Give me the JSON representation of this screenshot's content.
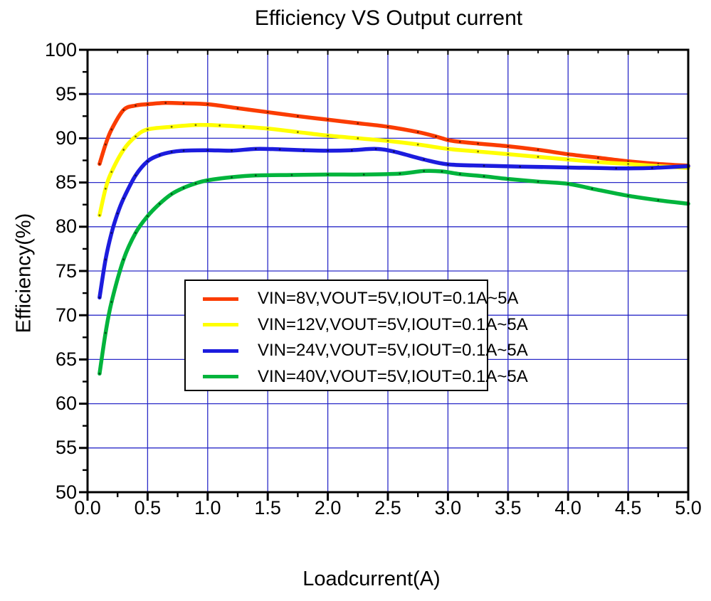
{
  "chart_data": {
    "type": "line",
    "title": "Efficiency VS Output current",
    "xlabel": "Loadcurrent(A)",
    "ylabel": "Efficiency(%)",
    "xlim": [
      0,
      5
    ],
    "ylim": [
      50,
      100
    ],
    "grid": "major",
    "grid_color": "#2B2BC8",
    "frame_color": "#000000",
    "x_ticks": {
      "values": [
        0,
        0.5,
        1,
        1.5,
        2,
        2.5,
        3,
        3.5,
        4,
        4.5,
        5
      ],
      "labels": [
        "0.0",
        "0.5",
        "1.0",
        "1.5",
        "2.0",
        "2.5",
        "3.0",
        "3.5",
        "4.0",
        "4.5",
        "5.0"
      ],
      "minor_step": 0.25
    },
    "y_ticks": {
      "values": [
        50,
        55,
        60,
        65,
        70,
        75,
        80,
        85,
        90,
        95,
        100
      ],
      "labels": [
        "50",
        "55",
        "60",
        "65",
        "70",
        "75",
        "80",
        "85",
        "90",
        "95",
        "100"
      ],
      "minor_step": 2.5
    },
    "legend": {
      "position": "inside-center-left",
      "border_color": "#000000",
      "background": "#FFFFFF"
    },
    "series": [
      {
        "name": "VIN=8V,VOUT=5V,IOUT=0.1A~5A",
        "color": "#FB3C00",
        "points": [
          [
            0.1,
            87.1
          ],
          [
            0.15,
            89.3
          ],
          [
            0.2,
            91.0
          ],
          [
            0.3,
            93.2
          ],
          [
            0.4,
            93.7
          ],
          [
            0.5,
            93.85
          ],
          [
            0.65,
            94.0
          ],
          [
            0.8,
            93.95
          ],
          [
            1.0,
            93.85
          ],
          [
            1.25,
            93.4
          ],
          [
            1.5,
            92.95
          ],
          [
            1.75,
            92.5
          ],
          [
            2.0,
            92.1
          ],
          [
            2.25,
            91.7
          ],
          [
            2.5,
            91.3
          ],
          [
            2.75,
            90.7
          ],
          [
            2.9,
            90.2
          ],
          [
            3.0,
            89.8
          ],
          [
            3.1,
            89.6
          ],
          [
            3.25,
            89.4
          ],
          [
            3.5,
            89.1
          ],
          [
            3.75,
            88.7
          ],
          [
            4.0,
            88.2
          ],
          [
            4.25,
            87.8
          ],
          [
            4.5,
            87.4
          ],
          [
            4.75,
            87.1
          ],
          [
            5.0,
            86.9
          ]
        ]
      },
      {
        "name": "VIN=12V,VOUT=5V,IOUT=0.1A~5A",
        "color": "#FFFF00",
        "points": [
          [
            0.1,
            81.3
          ],
          [
            0.15,
            84.3
          ],
          [
            0.2,
            86.2
          ],
          [
            0.3,
            88.7
          ],
          [
            0.4,
            90.2
          ],
          [
            0.5,
            91.0
          ],
          [
            0.7,
            91.3
          ],
          [
            0.9,
            91.5
          ],
          [
            1.1,
            91.45
          ],
          [
            1.3,
            91.3
          ],
          [
            1.5,
            91.1
          ],
          [
            1.75,
            90.7
          ],
          [
            2.0,
            90.3
          ],
          [
            2.25,
            90.0
          ],
          [
            2.5,
            89.7
          ],
          [
            2.75,
            89.3
          ],
          [
            3.0,
            88.8
          ],
          [
            3.25,
            88.5
          ],
          [
            3.5,
            88.2
          ],
          [
            3.75,
            87.9
          ],
          [
            4.0,
            87.6
          ],
          [
            4.25,
            87.3
          ],
          [
            4.5,
            87.1
          ],
          [
            4.75,
            86.85
          ],
          [
            5.0,
            86.65
          ]
        ]
      },
      {
        "name": "VIN=24V,VOUT=5V,IOUT=0.1A~5A",
        "color": "#1C1CDE",
        "points": [
          [
            0.1,
            72.0
          ],
          [
            0.15,
            76.3
          ],
          [
            0.2,
            79.3
          ],
          [
            0.25,
            81.5
          ],
          [
            0.3,
            83.2
          ],
          [
            0.4,
            85.8
          ],
          [
            0.5,
            87.4
          ],
          [
            0.6,
            88.1
          ],
          [
            0.7,
            88.45
          ],
          [
            0.8,
            88.6
          ],
          [
            1.0,
            88.65
          ],
          [
            1.2,
            88.6
          ],
          [
            1.4,
            88.8
          ],
          [
            1.6,
            88.75
          ],
          [
            1.8,
            88.65
          ],
          [
            2.0,
            88.6
          ],
          [
            2.2,
            88.65
          ],
          [
            2.4,
            88.8
          ],
          [
            2.55,
            88.5
          ],
          [
            2.8,
            87.6
          ],
          [
            3.0,
            87.05
          ],
          [
            3.3,
            86.9
          ],
          [
            3.6,
            86.8
          ],
          [
            4.0,
            86.7
          ],
          [
            4.4,
            86.6
          ],
          [
            4.7,
            86.65
          ],
          [
            5.0,
            86.85
          ]
        ]
      },
      {
        "name": "VIN=40V,VOUT=5V,IOUT=0.1A~5A",
        "color": "#00B43C",
        "points": [
          [
            0.1,
            63.4
          ],
          [
            0.15,
            68.0
          ],
          [
            0.2,
            71.5
          ],
          [
            0.3,
            76.3
          ],
          [
            0.4,
            79.3
          ],
          [
            0.5,
            81.2
          ],
          [
            0.6,
            82.6
          ],
          [
            0.7,
            83.7
          ],
          [
            0.8,
            84.4
          ],
          [
            0.9,
            84.9
          ],
          [
            1.0,
            85.25
          ],
          [
            1.2,
            85.6
          ],
          [
            1.4,
            85.8
          ],
          [
            1.7,
            85.85
          ],
          [
            2.0,
            85.9
          ],
          [
            2.3,
            85.9
          ],
          [
            2.6,
            86.0
          ],
          [
            2.8,
            86.3
          ],
          [
            2.95,
            86.25
          ],
          [
            3.1,
            85.95
          ],
          [
            3.3,
            85.7
          ],
          [
            3.5,
            85.4
          ],
          [
            3.75,
            85.1
          ],
          [
            4.0,
            84.85
          ],
          [
            4.2,
            84.3
          ],
          [
            4.5,
            83.5
          ],
          [
            4.75,
            83.0
          ],
          [
            5.0,
            82.6
          ]
        ]
      }
    ]
  }
}
